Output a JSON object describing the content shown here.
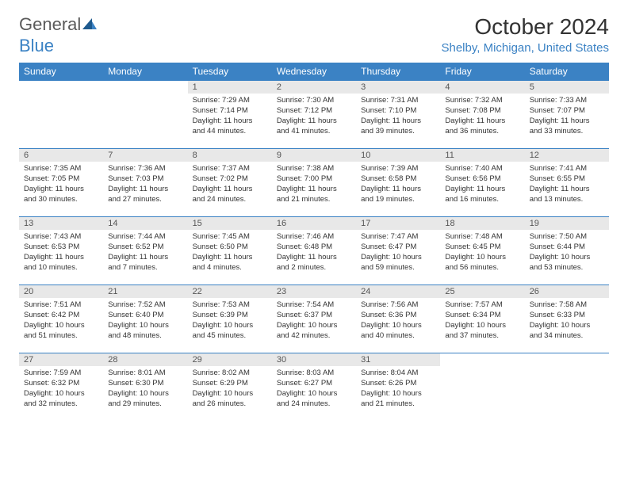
{
  "brand": {
    "word1": "General",
    "word2": "Blue"
  },
  "title": "October 2024",
  "location": "Shelby, Michigan, United States",
  "colors": {
    "header_bg": "#3b82c4",
    "header_text": "#ffffff",
    "daynum_bg": "#e8e8e8",
    "border": "#3b82c4",
    "logo_gray": "#5a5a5a",
    "logo_blue": "#3b82c4"
  },
  "daynames": [
    "Sunday",
    "Monday",
    "Tuesday",
    "Wednesday",
    "Thursday",
    "Friday",
    "Saturday"
  ],
  "weeks": [
    [
      {
        "n": "",
        "sr": "",
        "ss": "",
        "dl": ""
      },
      {
        "n": "",
        "sr": "",
        "ss": "",
        "dl": ""
      },
      {
        "n": "1",
        "sr": "Sunrise: 7:29 AM",
        "ss": "Sunset: 7:14 PM",
        "dl": "Daylight: 11 hours and 44 minutes."
      },
      {
        "n": "2",
        "sr": "Sunrise: 7:30 AM",
        "ss": "Sunset: 7:12 PM",
        "dl": "Daylight: 11 hours and 41 minutes."
      },
      {
        "n": "3",
        "sr": "Sunrise: 7:31 AM",
        "ss": "Sunset: 7:10 PM",
        "dl": "Daylight: 11 hours and 39 minutes."
      },
      {
        "n": "4",
        "sr": "Sunrise: 7:32 AM",
        "ss": "Sunset: 7:08 PM",
        "dl": "Daylight: 11 hours and 36 minutes."
      },
      {
        "n": "5",
        "sr": "Sunrise: 7:33 AM",
        "ss": "Sunset: 7:07 PM",
        "dl": "Daylight: 11 hours and 33 minutes."
      }
    ],
    [
      {
        "n": "6",
        "sr": "Sunrise: 7:35 AM",
        "ss": "Sunset: 7:05 PM",
        "dl": "Daylight: 11 hours and 30 minutes."
      },
      {
        "n": "7",
        "sr": "Sunrise: 7:36 AM",
        "ss": "Sunset: 7:03 PM",
        "dl": "Daylight: 11 hours and 27 minutes."
      },
      {
        "n": "8",
        "sr": "Sunrise: 7:37 AM",
        "ss": "Sunset: 7:02 PM",
        "dl": "Daylight: 11 hours and 24 minutes."
      },
      {
        "n": "9",
        "sr": "Sunrise: 7:38 AM",
        "ss": "Sunset: 7:00 PM",
        "dl": "Daylight: 11 hours and 21 minutes."
      },
      {
        "n": "10",
        "sr": "Sunrise: 7:39 AM",
        "ss": "Sunset: 6:58 PM",
        "dl": "Daylight: 11 hours and 19 minutes."
      },
      {
        "n": "11",
        "sr": "Sunrise: 7:40 AM",
        "ss": "Sunset: 6:56 PM",
        "dl": "Daylight: 11 hours and 16 minutes."
      },
      {
        "n": "12",
        "sr": "Sunrise: 7:41 AM",
        "ss": "Sunset: 6:55 PM",
        "dl": "Daylight: 11 hours and 13 minutes."
      }
    ],
    [
      {
        "n": "13",
        "sr": "Sunrise: 7:43 AM",
        "ss": "Sunset: 6:53 PM",
        "dl": "Daylight: 11 hours and 10 minutes."
      },
      {
        "n": "14",
        "sr": "Sunrise: 7:44 AM",
        "ss": "Sunset: 6:52 PM",
        "dl": "Daylight: 11 hours and 7 minutes."
      },
      {
        "n": "15",
        "sr": "Sunrise: 7:45 AM",
        "ss": "Sunset: 6:50 PM",
        "dl": "Daylight: 11 hours and 4 minutes."
      },
      {
        "n": "16",
        "sr": "Sunrise: 7:46 AM",
        "ss": "Sunset: 6:48 PM",
        "dl": "Daylight: 11 hours and 2 minutes."
      },
      {
        "n": "17",
        "sr": "Sunrise: 7:47 AM",
        "ss": "Sunset: 6:47 PM",
        "dl": "Daylight: 10 hours and 59 minutes."
      },
      {
        "n": "18",
        "sr": "Sunrise: 7:48 AM",
        "ss": "Sunset: 6:45 PM",
        "dl": "Daylight: 10 hours and 56 minutes."
      },
      {
        "n": "19",
        "sr": "Sunrise: 7:50 AM",
        "ss": "Sunset: 6:44 PM",
        "dl": "Daylight: 10 hours and 53 minutes."
      }
    ],
    [
      {
        "n": "20",
        "sr": "Sunrise: 7:51 AM",
        "ss": "Sunset: 6:42 PM",
        "dl": "Daylight: 10 hours and 51 minutes."
      },
      {
        "n": "21",
        "sr": "Sunrise: 7:52 AM",
        "ss": "Sunset: 6:40 PM",
        "dl": "Daylight: 10 hours and 48 minutes."
      },
      {
        "n": "22",
        "sr": "Sunrise: 7:53 AM",
        "ss": "Sunset: 6:39 PM",
        "dl": "Daylight: 10 hours and 45 minutes."
      },
      {
        "n": "23",
        "sr": "Sunrise: 7:54 AM",
        "ss": "Sunset: 6:37 PM",
        "dl": "Daylight: 10 hours and 42 minutes."
      },
      {
        "n": "24",
        "sr": "Sunrise: 7:56 AM",
        "ss": "Sunset: 6:36 PM",
        "dl": "Daylight: 10 hours and 40 minutes."
      },
      {
        "n": "25",
        "sr": "Sunrise: 7:57 AM",
        "ss": "Sunset: 6:34 PM",
        "dl": "Daylight: 10 hours and 37 minutes."
      },
      {
        "n": "26",
        "sr": "Sunrise: 7:58 AM",
        "ss": "Sunset: 6:33 PM",
        "dl": "Daylight: 10 hours and 34 minutes."
      }
    ],
    [
      {
        "n": "27",
        "sr": "Sunrise: 7:59 AM",
        "ss": "Sunset: 6:32 PM",
        "dl": "Daylight: 10 hours and 32 minutes."
      },
      {
        "n": "28",
        "sr": "Sunrise: 8:01 AM",
        "ss": "Sunset: 6:30 PM",
        "dl": "Daylight: 10 hours and 29 minutes."
      },
      {
        "n": "29",
        "sr": "Sunrise: 8:02 AM",
        "ss": "Sunset: 6:29 PM",
        "dl": "Daylight: 10 hours and 26 minutes."
      },
      {
        "n": "30",
        "sr": "Sunrise: 8:03 AM",
        "ss": "Sunset: 6:27 PM",
        "dl": "Daylight: 10 hours and 24 minutes."
      },
      {
        "n": "31",
        "sr": "Sunrise: 8:04 AM",
        "ss": "Sunset: 6:26 PM",
        "dl": "Daylight: 10 hours and 21 minutes."
      },
      {
        "n": "",
        "sr": "",
        "ss": "",
        "dl": ""
      },
      {
        "n": "",
        "sr": "",
        "ss": "",
        "dl": ""
      }
    ]
  ]
}
